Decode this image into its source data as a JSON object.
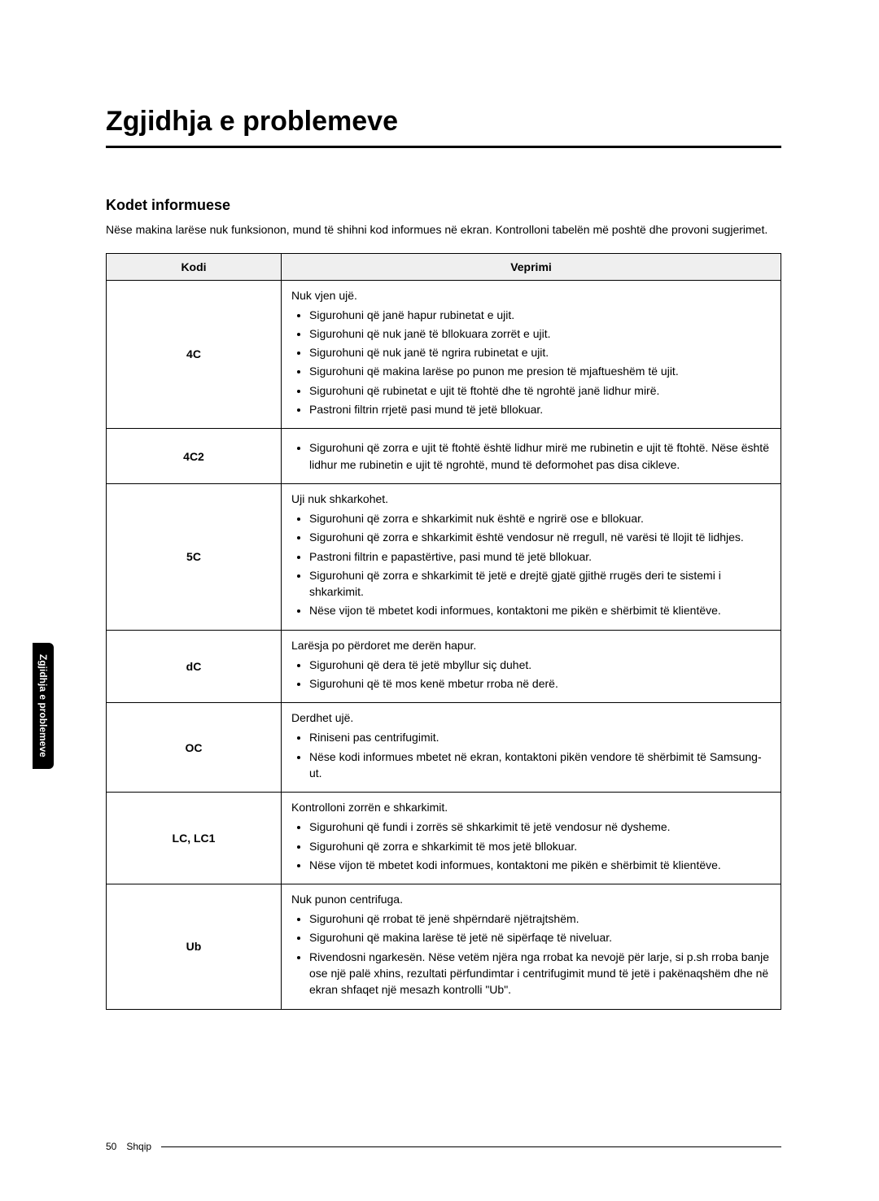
{
  "title": "Zgjidhja e problemeve",
  "subtitle": "Kodet informuese",
  "intro": "Nëse makina larëse nuk funksionon, mund të shihni kod informues në ekran. Kontrolloni tabelën më poshtë dhe provoni sugjerimet.",
  "side_tab": "Zgjidhja e problemeve",
  "footer": {
    "page": "50",
    "lang": "Shqip"
  },
  "table": {
    "headers": [
      "Kodi",
      "Veprimi"
    ],
    "rows": [
      {
        "code": "4C",
        "lead": "Nuk vjen ujë.",
        "items": [
          "Sigurohuni që janë hapur rubinetat e ujit.",
          "Sigurohuni që nuk janë të bllokuara zorrët e ujit.",
          "Sigurohuni që nuk janë të ngrira rubinetat e ujit.",
          "Sigurohuni që makina larëse po punon me presion të mjaftueshëm të ujit.",
          "Sigurohuni që rubinetat e ujit të ftohtë dhe të ngrohtë janë lidhur mirë.",
          "Pastroni filtrin rrjetë pasi mund të jetë bllokuar."
        ]
      },
      {
        "code": "4C2",
        "lead": "",
        "items": [
          "Sigurohuni që zorra e ujit të ftohtë është lidhur mirë me rubinetin e ujit të ftohtë. Nëse është lidhur me rubinetin e ujit të ngrohtë, mund të deformohet pas disa cikleve."
        ]
      },
      {
        "code": "5C",
        "lead": "Uji nuk shkarkohet.",
        "items": [
          "Sigurohuni që zorra e shkarkimit nuk është e ngrirë ose e bllokuar.",
          "Sigurohuni që zorra e shkarkimit është vendosur në rregull, në varësi të llojit të lidhjes.",
          "Pastroni filtrin e papastërtive, pasi mund të jetë bllokuar.",
          "Sigurohuni që zorra e shkarkimit të jetë e drejtë gjatë gjithë rrugës deri te sistemi i shkarkimit.",
          "Nëse vijon të mbetet kodi informues, kontaktoni me pikën e shërbimit të klientëve."
        ]
      },
      {
        "code": "dC",
        "lead": "Larësja po përdoret me derën hapur.",
        "items": [
          "Sigurohuni që dera të jetë mbyllur siç duhet.",
          "Sigurohuni që të mos kenë mbetur rroba në derë."
        ]
      },
      {
        "code": "OC",
        "lead": "Derdhet ujë.",
        "items": [
          "Riniseni pas centrifugimit.",
          "Nëse kodi informues mbetet në ekran, kontaktoni pikën vendore të shërbimit të Samsung-ut."
        ]
      },
      {
        "code": "LC, LC1",
        "lead": "Kontrolloni zorrën e shkarkimit.",
        "items": [
          "Sigurohuni që fundi i zorrës së shkarkimit të jetë vendosur në dysheme.",
          "Sigurohuni që zorra e shkarkimit të mos jetë bllokuar.",
          "Nëse vijon të mbetet kodi informues, kontaktoni me pikën e shërbimit të klientëve."
        ]
      },
      {
        "code": "Ub",
        "lead": "Nuk punon centrifuga.",
        "items": [
          "Sigurohuni që rrobat të jenë shpërndarë njëtrajtshëm.",
          "Sigurohuni që makina larëse të jetë në sipërfaqe të niveluar.",
          "Rivendosni ngarkesën. Nëse vetëm njëra nga rrobat ka nevojë për larje, si p.sh rroba banje ose një palë xhins, rezultati përfundimtar i centrifugimit mund të jetë i pakënaqshëm dhe në ekran shfaqet një mesazh kontrolli \"Ub\"."
        ]
      }
    ]
  }
}
